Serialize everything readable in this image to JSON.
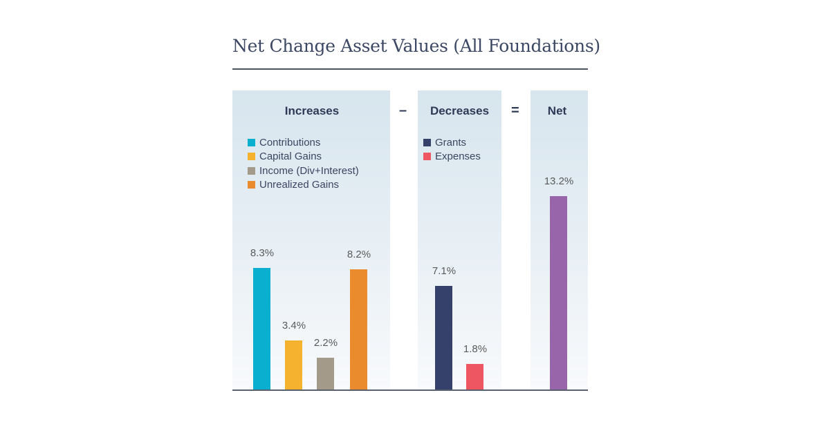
{
  "chart_data": {
    "type": "bar",
    "title": "Net Change Asset Values (All Foundations)",
    "groups": [
      {
        "name": "Increases",
        "operator_after": "–",
        "series": [
          {
            "name": "Contributions",
            "value": 8.3,
            "label": "8.3%",
            "color": "#0aafd0"
          },
          {
            "name": "Capital Gains",
            "value": 3.4,
            "label": "3.4%",
            "color": "#f4b22f"
          },
          {
            "name": "Income (Div+Interest)",
            "value": 2.2,
            "label": "2.2%",
            "color": "#a39a89"
          },
          {
            "name": "Unrealized Gains",
            "value": 8.2,
            "label": "8.2%",
            "color": "#ea8b2e"
          }
        ]
      },
      {
        "name": "Decreases",
        "operator_after": "=",
        "series": [
          {
            "name": "Grants",
            "value": 7.1,
            "label": "7.1%",
            "color": "#35416a"
          },
          {
            "name": "Expenses",
            "value": 1.8,
            "label": "1.8%",
            "color": "#ee5661"
          }
        ]
      },
      {
        "name": "Net",
        "series": [
          {
            "name": "Net",
            "value": 13.2,
            "label": "13.2%",
            "color": "#9865ab"
          }
        ]
      }
    ],
    "unit": "%",
    "ylim": [
      0,
      20
    ],
    "grid": false
  }
}
